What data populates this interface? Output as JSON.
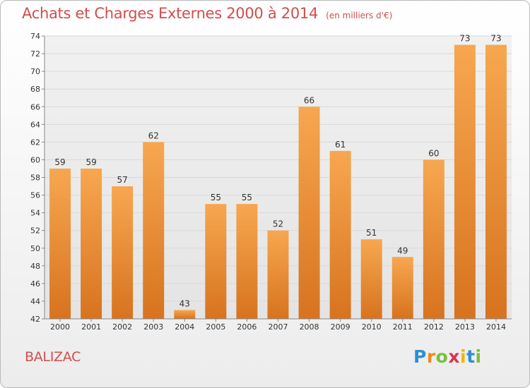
{
  "header": {
    "title": "Achats et Charges Externes 2000 à 2014",
    "subtitle": "(en milliers d'€)"
  },
  "footer": {
    "commune": "BALIZAC",
    "logo_text": "Proxiti",
    "logo_letters": [
      "P",
      "r",
      "o",
      "x",
      "i",
      "t",
      "i"
    ]
  },
  "colors": {
    "bar_top": "#f7a750",
    "bar_bottom": "#d7731f",
    "title": "#d24d4d",
    "grid": "#d9d9d9",
    "axis_text": "#333333"
  },
  "chart_data": {
    "type": "bar",
    "title": "Achats et Charges Externes 2000 à 2014",
    "subtitle": "(en milliers d'€)",
    "xlabel": "",
    "ylabel": "",
    "categories": [
      "2000",
      "2001",
      "2002",
      "2003",
      "2004",
      "2005",
      "2006",
      "2007",
      "2008",
      "2009",
      "2010",
      "2011",
      "2012",
      "2013",
      "2014"
    ],
    "values": [
      59,
      59,
      57,
      62,
      43,
      55,
      55,
      52,
      66,
      61,
      51,
      49,
      60,
      73,
      73
    ],
    "ylim": [
      42,
      74
    ],
    "yticks": [
      42,
      44,
      46,
      48,
      50,
      52,
      54,
      56,
      58,
      60,
      62,
      64,
      66,
      68,
      70,
      72,
      74
    ],
    "grid": true,
    "data_labels": true,
    "legend": "none"
  }
}
